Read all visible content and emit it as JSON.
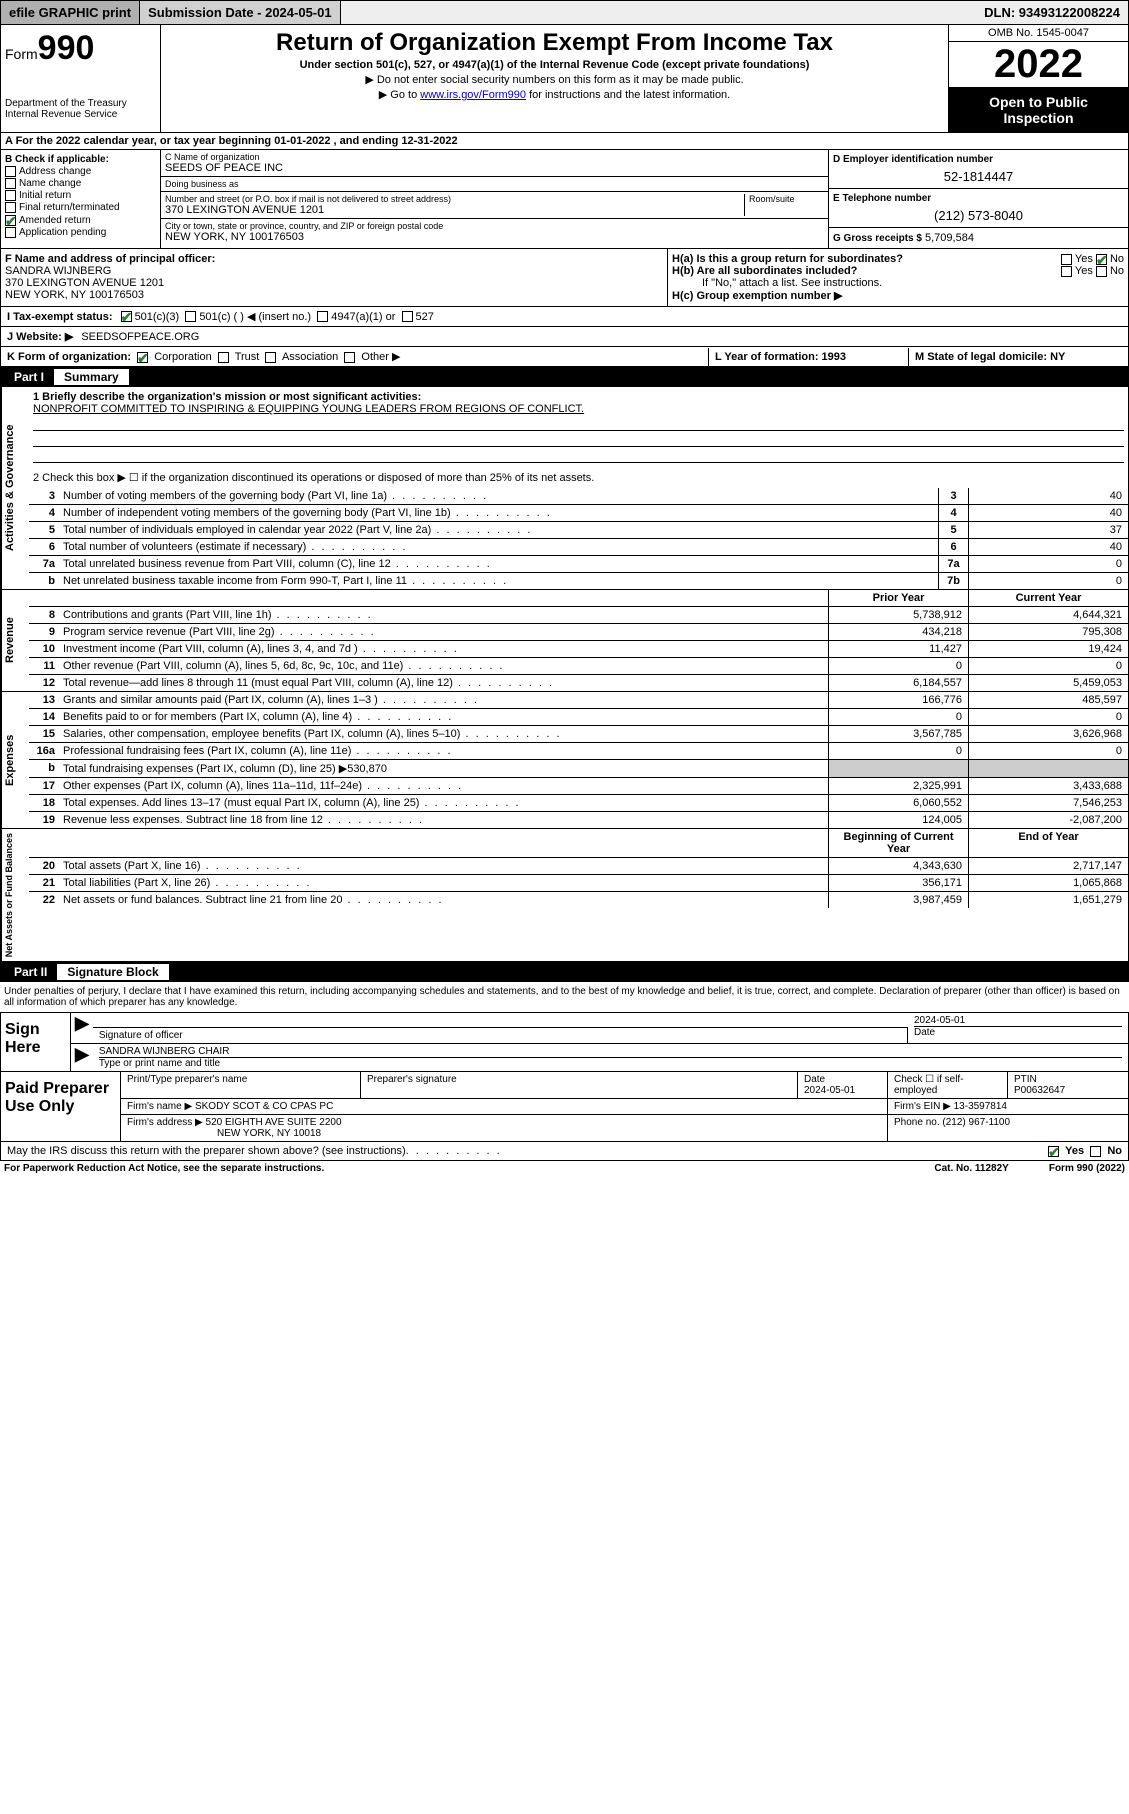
{
  "topbar": {
    "efile": "efile GRAPHIC print",
    "submission_label": "Submission Date - 2024-05-01",
    "dln": "DLN: 93493122008224"
  },
  "header": {
    "form_prefix": "Form",
    "form_number": "990",
    "dept": "Department of the Treasury",
    "irs": "Internal Revenue Service",
    "title": "Return of Organization Exempt From Income Tax",
    "subtitle": "Under section 501(c), 527, or 4947(a)(1) of the Internal Revenue Code (except private foundations)",
    "note1": "▶ Do not enter social security numbers on this form as it may be made public.",
    "note2_pre": "▶ Go to ",
    "note2_link": "www.irs.gov/Form990",
    "note2_post": " for instructions and the latest information.",
    "omb": "OMB No. 1545-0047",
    "year": "2022",
    "open": "Open to Public Inspection"
  },
  "line_a": "A For the 2022 calendar year, or tax year beginning 01-01-2022   , and ending 12-31-2022",
  "box_b": {
    "title": "B Check if applicable:",
    "items": [
      "Address change",
      "Name change",
      "Initial return",
      "Final return/terminated",
      "Amended return",
      "Application pending"
    ],
    "checked_index": 4
  },
  "box_c": {
    "name_label": "C Name of organization",
    "name": "SEEDS OF PEACE INC",
    "dba_label": "Doing business as",
    "dba": "",
    "street_label": "Number and street (or P.O. box if mail is not delivered to street address)",
    "room_label": "Room/suite",
    "street": "370 LEXINGTON AVENUE 1201",
    "city_label": "City or town, state or province, country, and ZIP or foreign postal code",
    "city": "NEW YORK, NY  100176503"
  },
  "box_d": {
    "label": "D Employer identification number",
    "val": "52-1814447"
  },
  "box_e": {
    "label": "E Telephone number",
    "val": "(212) 573-8040"
  },
  "box_g": {
    "label": "G Gross receipts $",
    "val": "5,709,584"
  },
  "box_f": {
    "label": "F Name and address of principal officer:",
    "name": "SANDRA WIJNBERG",
    "addr1": "370 LEXINGTON AVENUE 1201",
    "addr2": "NEW YORK, NY  100176503"
  },
  "box_h": {
    "ha": "H(a)  Is this a group return for subordinates?",
    "hb": "H(b)  Are all subordinates included?",
    "hb_note": "If \"No,\" attach a list. See instructions.",
    "hc": "H(c)  Group exemption number ▶",
    "yes": "Yes",
    "no": "No"
  },
  "line_i": {
    "label": "I   Tax-exempt status:",
    "opts": [
      "501(c)(3)",
      "501(c) (  ) ◀ (insert no.)",
      "4947(a)(1) or",
      "527"
    ]
  },
  "line_j": {
    "label": "J   Website: ▶",
    "val": "SEEDSOFPEACE.ORG"
  },
  "line_k": {
    "label": "K Form of organization:",
    "opts": [
      "Corporation",
      "Trust",
      "Association",
      "Other ▶"
    ],
    "l_label": "L Year of formation: 1993",
    "m_label": "M State of legal domicile: NY"
  },
  "part1": {
    "num": "Part I",
    "title": "Summary"
  },
  "mission_q": "1  Briefly describe the organization's mission or most significant activities:",
  "mission": "NONPROFIT COMMITTED TO INSPIRING & EQUIPPING YOUNG LEADERS FROM REGIONS OF CONFLICT.",
  "line2": "2   Check this box ▶ ☐  if the organization discontinued its operations or disposed of more than 25% of its net assets.",
  "gov_lines": [
    {
      "n": "3",
      "d": "Number of voting members of the governing body (Part VI, line 1a)",
      "box": "3",
      "v": "40"
    },
    {
      "n": "4",
      "d": "Number of independent voting members of the governing body (Part VI, line 1b)",
      "box": "4",
      "v": "40"
    },
    {
      "n": "5",
      "d": "Total number of individuals employed in calendar year 2022 (Part V, line 2a)",
      "box": "5",
      "v": "37"
    },
    {
      "n": "6",
      "d": "Total number of volunteers (estimate if necessary)",
      "box": "6",
      "v": "40"
    },
    {
      "n": "7a",
      "d": "Total unrelated business revenue from Part VIII, column (C), line 12",
      "box": "7a",
      "v": "0"
    },
    {
      "n": "b",
      "d": "Net unrelated business taxable income from Form 990-T, Part I, line 11",
      "box": "7b",
      "v": "0"
    }
  ],
  "col_hdr": {
    "prior": "Prior Year",
    "current": "Current Year",
    "boy": "Beginning of Current Year",
    "eoy": "End of Year"
  },
  "revenue": [
    {
      "n": "8",
      "d": "Contributions and grants (Part VIII, line 1h)",
      "p": "5,738,912",
      "c": "4,644,321"
    },
    {
      "n": "9",
      "d": "Program service revenue (Part VIII, line 2g)",
      "p": "434,218",
      "c": "795,308"
    },
    {
      "n": "10",
      "d": "Investment income (Part VIII, column (A), lines 3, 4, and 7d )",
      "p": "11,427",
      "c": "19,424"
    },
    {
      "n": "11",
      "d": "Other revenue (Part VIII, column (A), lines 5, 6d, 8c, 9c, 10c, and 11e)",
      "p": "0",
      "c": "0"
    },
    {
      "n": "12",
      "d": "Total revenue—add lines 8 through 11 (must equal Part VIII, column (A), line 12)",
      "p": "6,184,557",
      "c": "5,459,053"
    }
  ],
  "expenses": [
    {
      "n": "13",
      "d": "Grants and similar amounts paid (Part IX, column (A), lines 1–3 )",
      "p": "166,776",
      "c": "485,597"
    },
    {
      "n": "14",
      "d": "Benefits paid to or for members (Part IX, column (A), line 4)",
      "p": "0",
      "c": "0"
    },
    {
      "n": "15",
      "d": "Salaries, other compensation, employee benefits (Part IX, column (A), lines 5–10)",
      "p": "3,567,785",
      "c": "3,626,968"
    },
    {
      "n": "16a",
      "d": "Professional fundraising fees (Part IX, column (A), line 11e)",
      "p": "0",
      "c": "0"
    },
    {
      "n": "b",
      "d": "Total fundraising expenses (Part IX, column (D), line 25) ▶530,870",
      "grey": true
    },
    {
      "n": "17",
      "d": "Other expenses (Part IX, column (A), lines 11a–11d, 11f–24e)",
      "p": "2,325,991",
      "c": "3,433,688"
    },
    {
      "n": "18",
      "d": "Total expenses. Add lines 13–17 (must equal Part IX, column (A), line 25)",
      "p": "6,060,552",
      "c": "7,546,253"
    },
    {
      "n": "19",
      "d": "Revenue less expenses. Subtract line 18 from line 12",
      "p": "124,005",
      "c": "-2,087,200"
    }
  ],
  "netassets": [
    {
      "n": "20",
      "d": "Total assets (Part X, line 16)",
      "p": "4,343,630",
      "c": "2,717,147"
    },
    {
      "n": "21",
      "d": "Total liabilities (Part X, line 26)",
      "p": "356,171",
      "c": "1,065,868"
    },
    {
      "n": "22",
      "d": "Net assets or fund balances. Subtract line 21 from line 20",
      "p": "3,987,459",
      "c": "1,651,279"
    }
  ],
  "sides": {
    "gov": "Activities & Governance",
    "rev": "Revenue",
    "exp": "Expenses",
    "net": "Net Assets or Fund Balances"
  },
  "part2": {
    "num": "Part II",
    "title": "Signature Block"
  },
  "sig_decl": "Under penalties of perjury, I declare that I have examined this return, including accompanying schedules and statements, and to the best of my knowledge and belief, it is true, correct, and complete. Declaration of preparer (other than officer) is based on all information of which preparer has any knowledge.",
  "sign": {
    "side": "Sign Here",
    "sig_label": "Signature of officer",
    "date_label": "Date",
    "date": "2024-05-01",
    "name": "SANDRA WIJNBERG CHAIR",
    "name_label": "Type or print name and title"
  },
  "prep": {
    "side": "Paid Preparer Use Only",
    "h1": "Print/Type preparer's name",
    "h2": "Preparer's signature",
    "h3": "Date",
    "h4": "Check ☐ if self-employed",
    "h5": "PTIN",
    "date": "2024-05-01",
    "ptin": "P00632647",
    "firm_label": "Firm's name   ▶",
    "firm": "SKODY SCOT & CO CPAS PC",
    "ein_label": "Firm's EIN ▶",
    "ein": "13-3597814",
    "addr_label": "Firm's address ▶",
    "addr1": "520 EIGHTH AVE SUITE 2200",
    "addr2": "NEW YORK, NY  10018",
    "phone_label": "Phone no.",
    "phone": "(212) 967-1100"
  },
  "discuss": "May the IRS discuss this return with the preparer shown above? (see instructions)",
  "footer": {
    "left": "For Paperwork Reduction Act Notice, see the separate instructions.",
    "mid": "Cat. No. 11282Y",
    "right": "Form 990 (2022)"
  }
}
